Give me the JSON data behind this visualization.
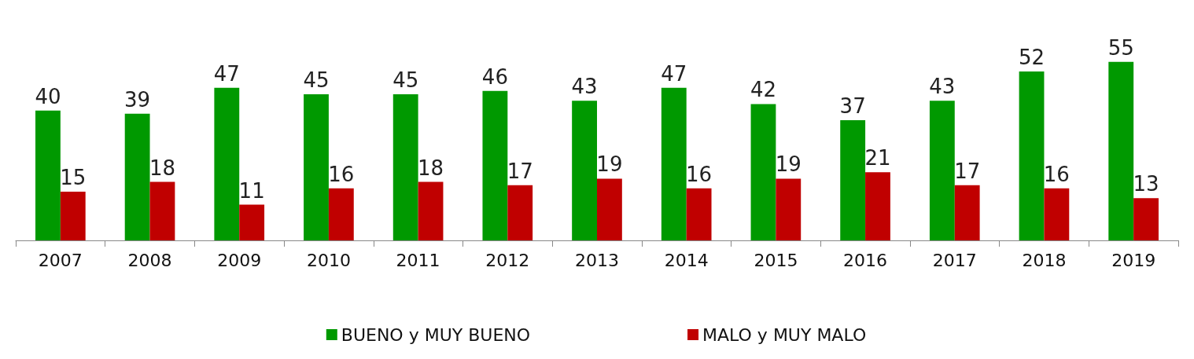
{
  "chart_data": {
    "type": "bar",
    "categories": [
      "2007",
      "2008",
      "2009",
      "2010",
      "2011",
      "2012",
      "2013",
      "2014",
      "2015",
      "2016",
      "2017",
      "2018",
      "2019"
    ],
    "series": [
      {
        "name": "BUENO y MUY BUENO",
        "color": "#009900",
        "values": [
          40,
          39,
          47,
          45,
          45,
          46,
          43,
          47,
          42,
          37,
          43,
          52,
          55
        ]
      },
      {
        "name": "MALO y MUY MALO",
        "color": "#c00000",
        "values": [
          15,
          18,
          11,
          16,
          18,
          17,
          19,
          16,
          19,
          21,
          17,
          16,
          13
        ]
      }
    ],
    "data_labels": true,
    "legend": "bottom"
  }
}
